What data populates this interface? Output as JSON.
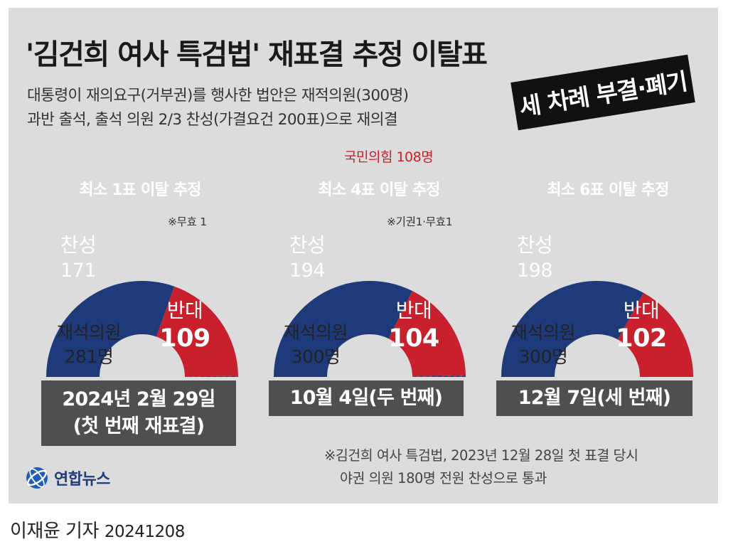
{
  "title": "'김건희 여사 특검법' 재표결 추정 이탈표",
  "subtitle_lines": [
    "대통령이 재의요구(거부권)를 행사한 법안은 재적의원(300명)",
    "과반 출석, 출석 의원 2/3 찬성(가결요건 200표)으로 재의결"
  ],
  "badge": "세 차례 부결·폐기",
  "party_note": "국민의힘 108명",
  "colors": {
    "for": "#1f3a7a",
    "against": "#c8202c",
    "invalid_hatch": "#7a3a6a",
    "panel_bg": "#dcdcdc",
    "date_box": "#4f4f4f",
    "pill_gray": "#7c7c7c",
    "pill_red": "#c8202c"
  },
  "labels": {
    "for": "찬성",
    "against": "반대",
    "present": "재석의원"
  },
  "panels": [
    {
      "pill": "최소 1표 이탈 추정",
      "pill_style": "gray",
      "note": "※무효 1",
      "for_value": "171",
      "against_value": "109",
      "present_value": "281명",
      "date_lines": [
        "2024년 2월 29일",
        "(첫 번째 재표결)"
      ]
    },
    {
      "pill": "최소 4표 이탈 추정",
      "pill_style": "red",
      "note": "※기권1·무효1",
      "for_value": "194",
      "against_value": "104",
      "present_value": "300명",
      "date_lines": [
        "10월 4일(두 번째)"
      ]
    },
    {
      "pill": "최소 6표 이탈 추정",
      "pill_style": "red",
      "note": "",
      "for_value": "198",
      "against_value": "102",
      "present_value": "300명",
      "date_lines": [
        "12월 7일(세 번째)"
      ]
    }
  ],
  "footnote_lines": [
    "※김건희 여사 특검법, 2023년 12월 28일 첫 표결 당시",
    "야권 의원 180명 전원 찬성으로 통과"
  ],
  "logo": {
    "name": "연합뉴스",
    "icon": "yonhap-logo-icon"
  },
  "credit": {
    "author": "이재윤 기자",
    "date": "20241208"
  },
  "chart_data": [
    {
      "type": "pie",
      "title": "2024년 2월 29일 (첫 번째 재표결)",
      "total": 281,
      "slices": [
        {
          "label": "찬성",
          "value": 171
        },
        {
          "label": "반대",
          "value": 109
        },
        {
          "label": "무효",
          "value": 1
        }
      ]
    },
    {
      "type": "pie",
      "title": "10월 4일(두 번째)",
      "total": 300,
      "slices": [
        {
          "label": "찬성",
          "value": 194
        },
        {
          "label": "반대",
          "value": 104
        },
        {
          "label": "기권",
          "value": 1
        },
        {
          "label": "무효",
          "value": 1
        }
      ]
    },
    {
      "type": "pie",
      "title": "12월 7일(세 번째)",
      "total": 300,
      "slices": [
        {
          "label": "찬성",
          "value": 198
        },
        {
          "label": "반대",
          "value": 102
        }
      ]
    }
  ]
}
